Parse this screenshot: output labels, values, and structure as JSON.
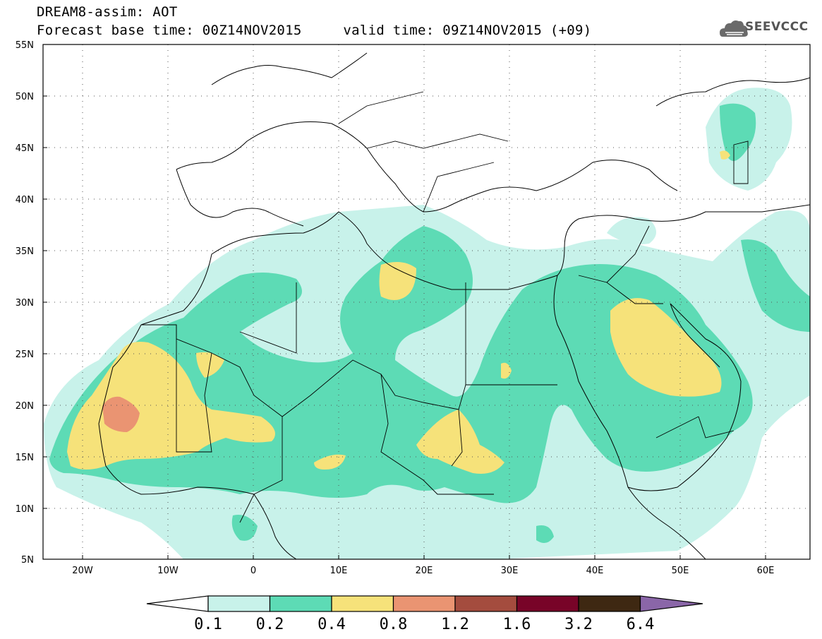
{
  "title": {
    "line1": "DREAM8-assim: AOT",
    "base_label": "Forecast base time: 00Z14NOV2015",
    "valid_label": "valid time: 09Z14NOV2015 (+09)"
  },
  "logo": {
    "text": "SEEVCCC",
    "icon": "cloud-icon"
  },
  "map": {
    "lon_range": [
      -25,
      65
    ],
    "lat_range": [
      5,
      55
    ],
    "lat_labels": [
      "55N",
      "50N",
      "45N",
      "40N",
      "35N",
      "30N",
      "25N",
      "20N",
      "15N",
      "10N",
      "5N"
    ],
    "lon_labels": [
      "20W",
      "10W",
      "0",
      "10E",
      "20E",
      "30E",
      "40E",
      "50E",
      "60E"
    ],
    "grid": "dotted"
  },
  "colorbar": {
    "labels": [
      "0.1",
      "0.2",
      "0.4",
      "0.8",
      "1.2",
      "1.6",
      "3.2",
      "6.4"
    ],
    "colors": [
      "#ffffff",
      "#c8f2ea",
      "#5ddbb5",
      "#f6e27a",
      "#ea9472",
      "#a44c3e",
      "#780428",
      "#3e2812",
      "#8a66a8"
    ]
  }
}
